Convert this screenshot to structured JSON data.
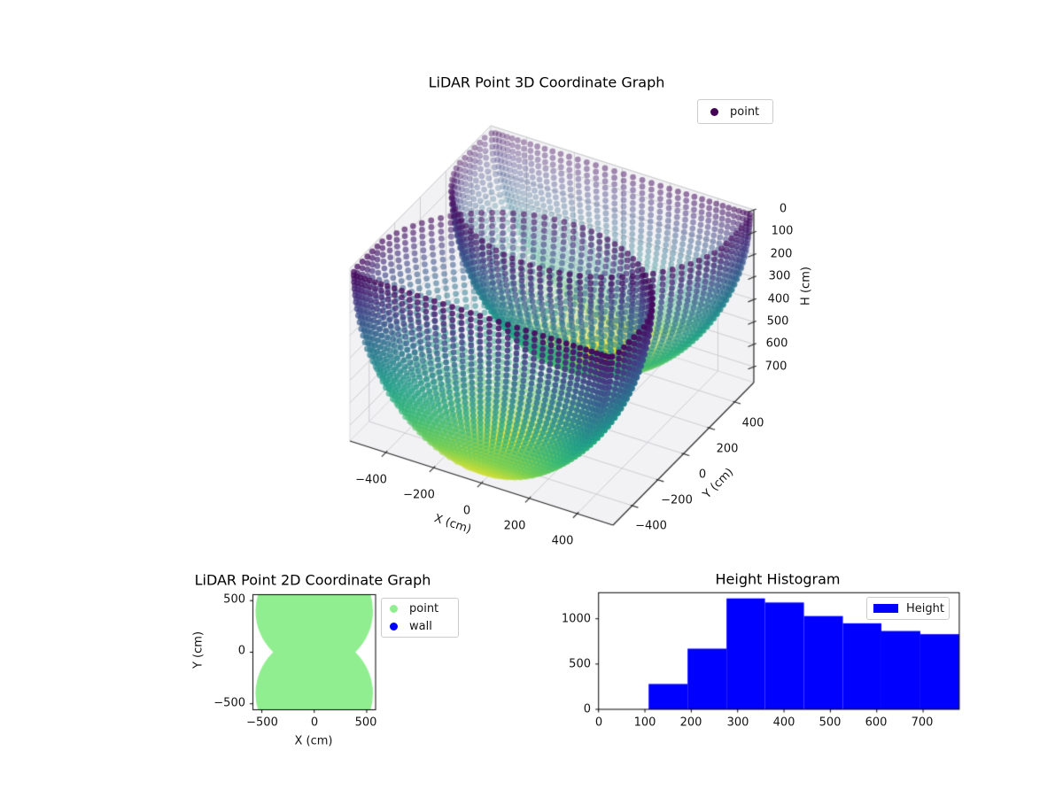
{
  "plot3d": {
    "title": "LiDAR Point 3D Coordinate Graph",
    "xlabel": "X (cm)",
    "ylabel": "Y (cm)",
    "hlabel": "H (cm)",
    "x_tick_labels": [
      "−400",
      "−200",
      "0",
      "200",
      "400"
    ],
    "y_tick_labels": [
      "−400",
      "−200",
      "0",
      "200",
      "400"
    ],
    "h_tick_labels": [
      "0",
      "100",
      "200",
      "300",
      "400",
      "500",
      "600",
      "700"
    ],
    "legend": {
      "items": [
        {
          "label": "point",
          "color": "#440154"
        }
      ]
    }
  },
  "plot2d": {
    "title": "LiDAR Point 2D Coordinate Graph",
    "xlabel": "X (cm)",
    "ylabel": "Y (cm)",
    "x_tick_labels": [
      "−500",
      "0",
      "500"
    ],
    "y_tick_labels": [
      "500",
      "0",
      "−500"
    ],
    "legend": {
      "items": [
        {
          "label": "point",
          "color": "#90ee90"
        },
        {
          "label": "wall",
          "color": "#0000ff"
        }
      ]
    }
  },
  "hist": {
    "title": "Height Histogram",
    "x_tick_labels": [
      "0",
      "100",
      "200",
      "300",
      "400",
      "500",
      "600",
      "700"
    ],
    "y_tick_labels": [
      "0",
      "500",
      "1000"
    ],
    "legend": {
      "items": [
        {
          "label": "Height",
          "color": "#0000ff"
        }
      ]
    }
  },
  "chart_data": [
    {
      "id": "lidar_3d",
      "type": "scatter",
      "projection": "3d",
      "title": "LiDAR Point 3D Coordinate Graph",
      "xlabel": "X (cm)",
      "ylabel": "Y (cm)",
      "zlabel": "H (cm)",
      "xlim": [
        -550,
        550
      ],
      "ylim": [
        -550,
        550
      ],
      "zlim": [
        0,
        770
      ],
      "z_axis_inverted": true,
      "x_ticks": [
        -400,
        -200,
        0,
        200,
        400
      ],
      "y_ticks": [
        -400,
        -200,
        0,
        200,
        400
      ],
      "z_ticks": [
        0,
        100,
        200,
        300,
        400,
        500,
        600,
        700
      ],
      "colormap": "viridis",
      "color_by": "height",
      "legend_position": "upper right",
      "series": [
        {
          "name": "point",
          "generator": {
            "description": "Two LiDAR scanners on the ceiling; each emits concentric elevation rings that trace a quarter-arc shell from rim (H=0, purple) to bowl bottom (H=750, yellow); points are clamped to room walls at ±550 cm, producing vertical point columns on the walls",
            "scanner_positions": [
              {
                "x": 0,
                "y": -400
              },
              {
                "x": 0,
                "y": 400
              }
            ],
            "arc_radius_cm": 560,
            "floor_depth_cm": 750,
            "elevation_rings": 40,
            "points_per_ring": 90,
            "room_half_size_cm": 550
          }
        }
      ]
    },
    {
      "id": "lidar_2d",
      "type": "scatter",
      "title": "LiDAR Point 2D Coordinate Graph",
      "xlabel": "X (cm)",
      "ylabel": "Y (cm)",
      "xlim": [
        -585,
        585
      ],
      "ylim": [
        -558,
        558
      ],
      "x_ticks": [
        -500,
        0,
        500
      ],
      "y_ticks": [
        -500,
        0,
        500
      ],
      "legend_position": "upper right",
      "series": [
        {
          "name": "point",
          "color": "#90ee90",
          "shape": "union_of_discs",
          "disc_centers": [
            {
              "x": 0,
              "y": -400
            },
            {
              "x": 0,
              "y": 400
            }
          ],
          "disc_radius_cm": 560
        },
        {
          "name": "wall",
          "color": "#0000ff"
        }
      ]
    },
    {
      "id": "height_histogram",
      "type": "histogram",
      "title": "Height Histogram",
      "series_name": "Height",
      "color": "#0000ff",
      "bin_edges": [
        108,
        192,
        276,
        359,
        443,
        527,
        610,
        694,
        778
      ],
      "counts": [
        280,
        670,
        1225,
        1180,
        1030,
        950,
        865,
        830
      ],
      "xlim": [
        0,
        778
      ],
      "ylim": [
        0,
        1288
      ],
      "x_ticks": [
        0,
        100,
        200,
        300,
        400,
        500,
        600,
        700
      ],
      "y_ticks": [
        0,
        500,
        1000
      ],
      "legend_position": "upper right"
    }
  ]
}
